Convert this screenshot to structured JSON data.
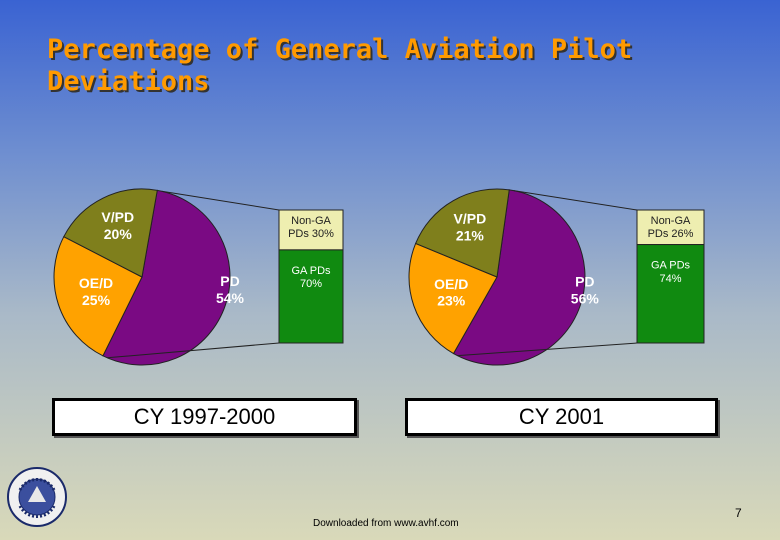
{
  "title": "Percentage of General Aviation Pilot Deviations",
  "colors": {
    "pd": "#7a0a83",
    "vpd": "#7f7f1c",
    "oed": "#ffa200",
    "non_ga": "#eeeeb0",
    "ga": "#108a10"
  },
  "chart_data": [
    {
      "type": "pie",
      "title": "CY 1997-2000",
      "slices": [
        {
          "label": "PD",
          "value": 54,
          "text": "PD\n54%"
        },
        {
          "label": "V/PD",
          "value": 20,
          "text": "V/PD\n20%"
        },
        {
          "label": "OE/D",
          "value": 25,
          "text": "OE/D\n25%"
        }
      ],
      "breakdown_bar": [
        {
          "label": "Non-GA PDs",
          "value": 30,
          "text": "Non-GA\nPDs 30%"
        },
        {
          "label": "GA PDs",
          "value": 70,
          "text": "GA PDs\n70%"
        }
      ]
    },
    {
      "type": "pie",
      "title": "CY 2001",
      "slices": [
        {
          "label": "PD",
          "value": 56,
          "text": "PD\n56%"
        },
        {
          "label": "V/PD",
          "value": 21,
          "text": "V/PD\n21%"
        },
        {
          "label": "OE/D",
          "value": 23,
          "text": "OE/D\n23%"
        }
      ],
      "breakdown_bar": [
        {
          "label": "Non-GA PDs",
          "value": 26,
          "text": "Non-GA\nPDs 26%"
        },
        {
          "label": "GA PDs",
          "value": 74,
          "text": "GA PDs\n74%"
        }
      ]
    }
  ],
  "footer": "Downloaded from www.avhf.com",
  "page_number": "7",
  "seal_icon": "runway-safety-program-seal-icon"
}
